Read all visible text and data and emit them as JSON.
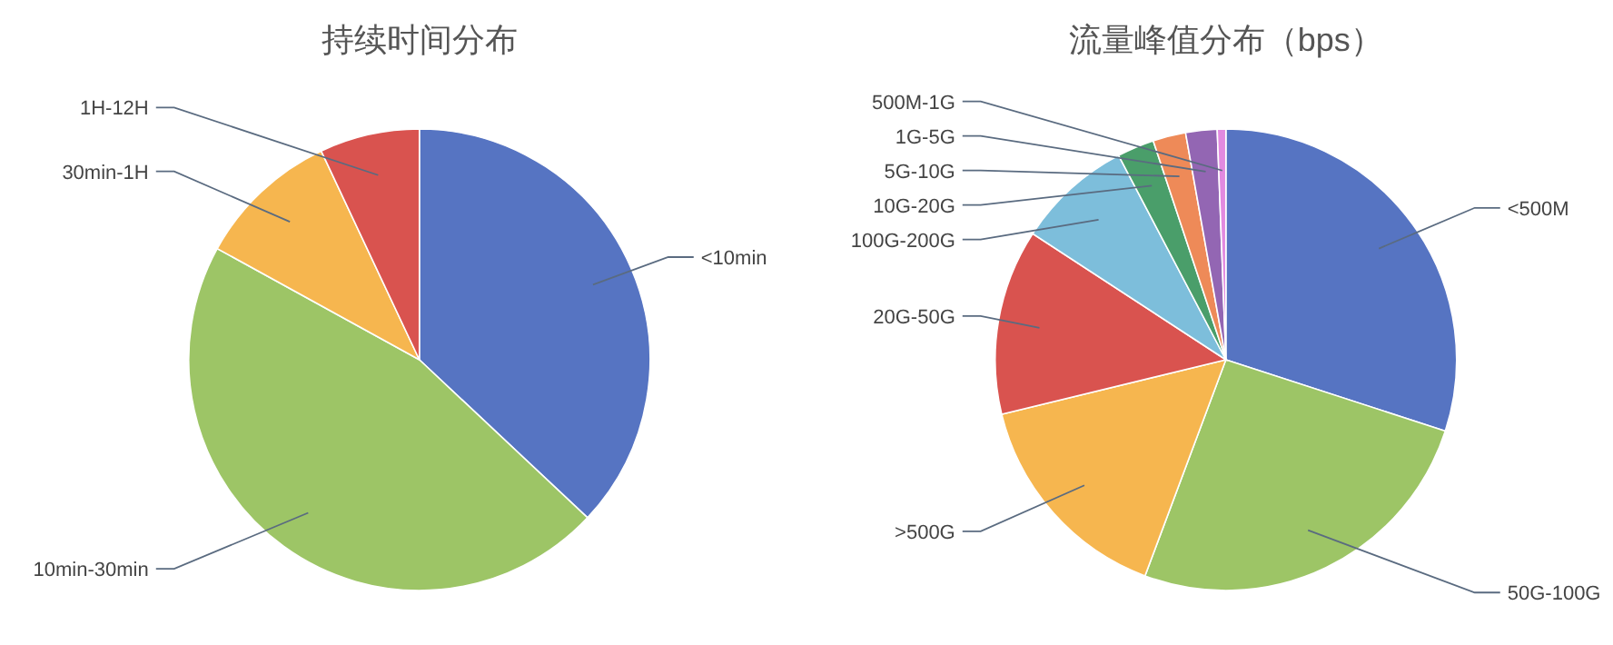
{
  "chart_data": [
    {
      "type": "pie",
      "title": "持续时间分布",
      "categories": [
        "<10min",
        "10min-30min",
        "30min-1H",
        "1H-12H"
      ],
      "values": [
        37,
        46,
        10,
        7
      ],
      "colors": [
        "#5674c2",
        "#9dc566",
        "#f6b64f",
        "#d9534f"
      ]
    },
    {
      "type": "pie",
      "title": "流量峰值分布（bps）",
      "categories": [
        "<500M",
        "50G-100G",
        ">500G",
        "20G-50G",
        "100G-200G",
        "10G-20G",
        "5G-10G",
        "1G-5G",
        "500M-1G"
      ],
      "values": [
        30,
        25.7,
        15.5,
        13,
        8.1,
        2.6,
        2.3,
        2.2,
        0.6
      ],
      "colors": [
        "#5674c2",
        "#9dc566",
        "#f6b64f",
        "#d9534f",
        "#7dbedb",
        "#4a9e6a",
        "#ee8a58",
        "#9366b3",
        "#e28ae0"
      ]
    }
  ]
}
